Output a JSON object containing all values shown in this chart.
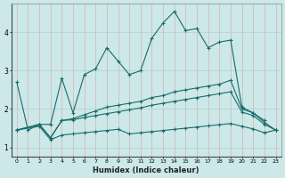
{
  "xlabel": "Humidex (Indice chaleur)",
  "background_color": "#cce8e8",
  "grid_color": "#b0d0d0",
  "line_color": "#1a6b6b",
  "x_ticks": [
    0,
    1,
    2,
    3,
    4,
    5,
    6,
    7,
    8,
    9,
    10,
    11,
    12,
    13,
    14,
    15,
    16,
    17,
    18,
    19,
    20,
    21,
    22,
    23
  ],
  "y_ticks": [
    1,
    2,
    3,
    4
  ],
  "xlim": [
    -0.5,
    23.5
  ],
  "ylim": [
    0.75,
    4.75
  ],
  "line1_x": [
    0,
    1,
    2,
    3,
    4,
    5,
    6,
    7,
    8,
    9,
    10,
    11,
    12,
    13,
    14,
    15,
    16,
    17,
    18,
    19,
    20,
    21,
    22
  ],
  "line1_y": [
    2.7,
    1.45,
    1.6,
    1.6,
    2.8,
    1.9,
    2.9,
    3.05,
    3.6,
    3.25,
    2.9,
    3.0,
    3.85,
    4.25,
    4.55,
    4.05,
    4.1,
    3.6,
    3.75,
    3.8,
    2.05,
    1.9,
    1.7
  ],
  "line2_x": [
    0,
    2,
    3,
    4,
    5,
    6,
    7,
    8,
    9,
    10,
    11,
    12,
    13,
    14,
    15,
    16,
    17,
    18,
    19,
    20,
    21,
    22,
    23
  ],
  "line2_y": [
    1.45,
    1.6,
    1.25,
    1.7,
    1.75,
    1.85,
    1.95,
    2.05,
    2.1,
    2.15,
    2.2,
    2.3,
    2.35,
    2.45,
    2.5,
    2.55,
    2.6,
    2.65,
    2.75,
    2.0,
    1.9,
    1.65,
    1.45
  ],
  "line3_x": [
    0,
    2,
    3,
    4,
    5,
    6,
    7,
    8,
    9,
    10,
    11,
    12,
    13,
    14,
    15,
    16,
    17,
    18,
    19,
    20,
    21,
    22,
    23
  ],
  "line3_y": [
    1.45,
    1.6,
    1.25,
    1.7,
    1.72,
    1.78,
    1.83,
    1.88,
    1.93,
    1.98,
    2.03,
    2.1,
    2.15,
    2.2,
    2.25,
    2.3,
    2.35,
    2.4,
    2.45,
    1.92,
    1.83,
    1.6,
    1.45
  ],
  "line4_x": [
    0,
    2,
    3,
    4,
    5,
    6,
    7,
    8,
    9,
    10,
    11,
    12,
    13,
    14,
    15,
    16,
    17,
    18,
    19,
    20,
    21,
    22,
    23
  ],
  "line4_y": [
    1.45,
    1.55,
    1.2,
    1.32,
    1.35,
    1.38,
    1.41,
    1.44,
    1.47,
    1.35,
    1.38,
    1.41,
    1.44,
    1.47,
    1.5,
    1.53,
    1.56,
    1.59,
    1.62,
    1.55,
    1.48,
    1.38,
    1.45
  ]
}
